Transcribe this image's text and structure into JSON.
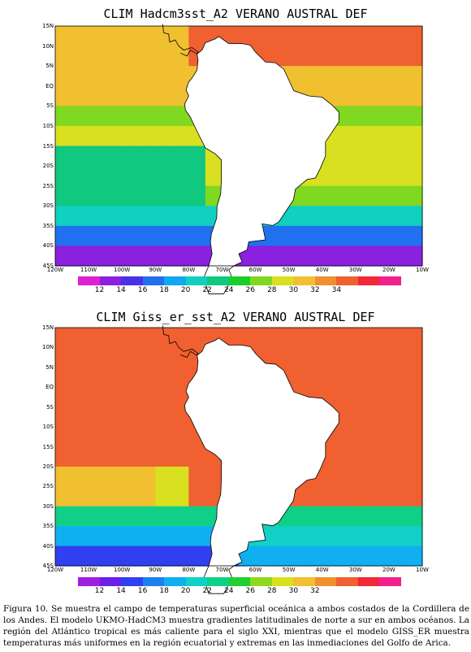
{
  "maps": [
    {
      "title": "CLIM Hadcm3sst_A2 VERANO AUSTRAL DEF",
      "lat_labels": [
        "15N",
        "10N",
        "5N",
        "EQ",
        "5S",
        "10S",
        "15S",
        "20S",
        "25S",
        "30S",
        "35S",
        "40S",
        "45S"
      ],
      "lon_labels": [
        "120W",
        "110W",
        "100W",
        "90W",
        "80W",
        "70W",
        "60W",
        "50W",
        "40W",
        "30W",
        "20W",
        "10W"
      ],
      "colorbar_labels": [
        "12",
        "14",
        "16",
        "18",
        "20",
        "22",
        "24",
        "26",
        "28",
        "30",
        "32",
        "34"
      ],
      "colorbar_colors": [
        "#e020d0",
        "#8c20e0",
        "#4a30e8",
        "#2070f0",
        "#10a8f0",
        "#10d0c0",
        "#10c880",
        "#18d028",
        "#80d820",
        "#d8e020",
        "#f0c030",
        "#f09030",
        "#f06030",
        "#f02838",
        "#f0208c"
      ]
    },
    {
      "title": "CLIM Giss_er_sst_A2 VERANO AUSTRAL DEF",
      "lat_labels": [
        "15N",
        "10N",
        "5N",
        "EQ",
        "5S",
        "10S",
        "15S",
        "20S",
        "25S",
        "30S",
        "35S",
        "40S",
        "45S"
      ],
      "lon_labels": [
        "120W",
        "110W",
        "100W",
        "90W",
        "80W",
        "70W",
        "60W",
        "50W",
        "40W",
        "30W",
        "20W",
        "10W"
      ],
      "colorbar_labels": [
        "12",
        "14",
        "16",
        "18",
        "20",
        "22",
        "24",
        "26",
        "28",
        "30",
        "32"
      ],
      "colorbar_colors": [
        "#a020e0",
        "#6a20e8",
        "#3040f0",
        "#1c80f0",
        "#10b0f0",
        "#10d0c8",
        "#10d088",
        "#20d030",
        "#90d820",
        "#d8e020",
        "#f0c030",
        "#f09030",
        "#f06030",
        "#f02838",
        "#f0208c"
      ]
    }
  ],
  "caption": "Figura 10. Se muestra el campo de temperaturas superficial oceánica a ambos costados de la Cordillera de los Andes. El modelo UKMO-HadCM3 muestra gradientes latitudinales de norte a sur en ambos océanos. La región del Atlántico tropical es más caliente para el siglo XXI, mientras que el modelo GISS_ER muestra temperaturas más uniformes en la región ecuatorial y extremas en las inmediaciones del Golfo de Arica."
}
